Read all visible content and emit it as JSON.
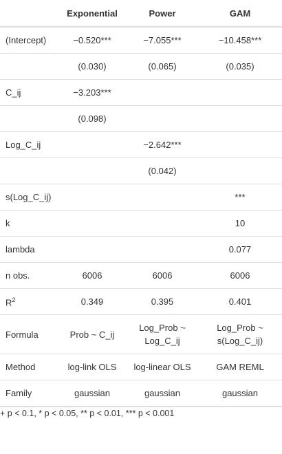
{
  "header": {
    "col0": "",
    "col1": "Exponential",
    "col2": "Power",
    "col3": "GAM"
  },
  "rows": [
    {
      "label": "(Intercept)",
      "c1": "−0.520***",
      "c2": "−7.055***",
      "c3": "−10.458***"
    },
    {
      "label": "",
      "c1": "(0.030)",
      "c2": "(0.065)",
      "c3": "(0.035)"
    },
    {
      "label": "C_ij",
      "c1": "−3.203***",
      "c2": "",
      "c3": ""
    },
    {
      "label": "",
      "c1": "(0.098)",
      "c2": "",
      "c3": ""
    },
    {
      "label": "Log_C_ij",
      "c1": "",
      "c2": "−2.642***",
      "c3": ""
    },
    {
      "label": "",
      "c1": "",
      "c2": "(0.042)",
      "c3": ""
    },
    {
      "label": "s(Log_C_ij)",
      "c1": "",
      "c2": "",
      "c3": "***"
    },
    {
      "label": "k",
      "c1": "",
      "c2": "",
      "c3": "10"
    },
    {
      "label": "lambda",
      "c1": "",
      "c2": "",
      "c3": "0.077"
    },
    {
      "label": "n obs.",
      "c1": "6006",
      "c2": "6006",
      "c3": "6006"
    },
    {
      "label_base": "R",
      "label_sup": "2",
      "c1": "0.349",
      "c2": "0.395",
      "c3": "0.401"
    },
    {
      "label": "Formula",
      "c1": "Prob ~ C_ij",
      "c2a": "Log_Prob ~",
      "c2b": "Log_C_ij",
      "c3a": "Log_Prob ~",
      "c3b": "s(Log_C_ij)"
    },
    {
      "label": "Method",
      "c1": "log-link OLS",
      "c2": "log-linear OLS",
      "c3": "GAM REML"
    },
    {
      "label": "Family",
      "c1": "gaussian",
      "c2": "gaussian",
      "c3": "gaussian"
    }
  ],
  "footnote": "+ p < 0.1, * p < 0.05, ** p < 0.01, *** p < 0.001"
}
